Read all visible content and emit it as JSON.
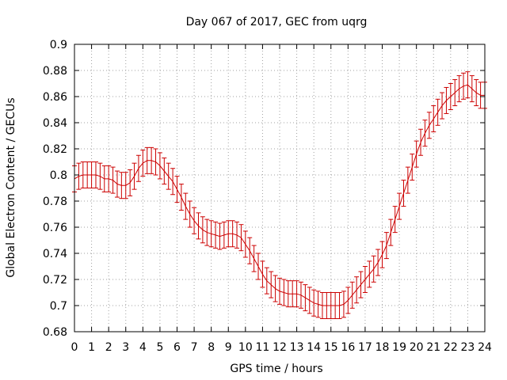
{
  "chart_data": {
    "type": "line",
    "title": "Day 067 of 2017, GEC from uqrg",
    "xlabel": "GPS time / hours",
    "ylabel": "Global Electron Content / GECUs",
    "xlim": [
      0,
      24
    ],
    "ylim": [
      0.68,
      0.9
    ],
    "xticks": [
      "0",
      "1",
      "2",
      "3",
      "4",
      "5",
      "6",
      "7",
      "8",
      "9",
      "10",
      "11",
      "12",
      "13",
      "14",
      "15",
      "16",
      "17",
      "18",
      "19",
      "20",
      "21",
      "22",
      "23",
      "24"
    ],
    "yticks": [
      "0.68",
      "0.7",
      "0.72",
      "0.74",
      "0.76",
      "0.78",
      "0.8",
      "0.82",
      "0.84",
      "0.86",
      "0.88",
      "0.9"
    ],
    "grid": true,
    "series_color": "#cc0000",
    "series": [
      {
        "name": "GEC",
        "x": [
          0,
          0.25,
          0.5,
          0.75,
          1,
          1.25,
          1.5,
          1.75,
          2,
          2.25,
          2.5,
          2.75,
          3,
          3.25,
          3.5,
          3.75,
          4,
          4.25,
          4.5,
          4.75,
          5,
          5.25,
          5.5,
          5.75,
          6,
          6.25,
          6.5,
          6.75,
          7,
          7.25,
          7.5,
          7.75,
          8,
          8.25,
          8.5,
          8.75,
          9,
          9.25,
          9.5,
          9.75,
          10,
          10.25,
          10.5,
          10.75,
          11,
          11.25,
          11.5,
          11.75,
          12,
          12.25,
          12.5,
          12.75,
          13,
          13.25,
          13.5,
          13.75,
          14,
          14.25,
          14.5,
          14.75,
          15,
          15.25,
          15.5,
          15.75,
          16,
          16.25,
          16.5,
          16.75,
          17,
          17.25,
          17.5,
          17.75,
          18,
          18.25,
          18.5,
          18.75,
          19,
          19.25,
          19.5,
          19.75,
          20,
          20.25,
          20.5,
          20.75,
          21,
          21.25,
          21.5,
          21.75,
          22,
          22.25,
          22.5,
          22.75,
          23,
          23.25,
          23.5,
          23.75,
          24
        ],
        "y": [
          0.797,
          0.799,
          0.8,
          0.8,
          0.8,
          0.8,
          0.799,
          0.797,
          0.797,
          0.796,
          0.793,
          0.792,
          0.792,
          0.794,
          0.799,
          0.805,
          0.809,
          0.811,
          0.811,
          0.81,
          0.807,
          0.803,
          0.799,
          0.795,
          0.789,
          0.783,
          0.776,
          0.77,
          0.765,
          0.761,
          0.758,
          0.756,
          0.755,
          0.754,
          0.753,
          0.754,
          0.755,
          0.755,
          0.754,
          0.752,
          0.747,
          0.742,
          0.736,
          0.73,
          0.724,
          0.719,
          0.716,
          0.713,
          0.711,
          0.71,
          0.709,
          0.709,
          0.709,
          0.708,
          0.706,
          0.704,
          0.702,
          0.701,
          0.7,
          0.7,
          0.7,
          0.7,
          0.7,
          0.701,
          0.704,
          0.708,
          0.712,
          0.716,
          0.72,
          0.724,
          0.728,
          0.733,
          0.739,
          0.746,
          0.756,
          0.766,
          0.776,
          0.786,
          0.796,
          0.806,
          0.816,
          0.825,
          0.832,
          0.838,
          0.843,
          0.848,
          0.853,
          0.857,
          0.86,
          0.863,
          0.866,
          0.868,
          0.869,
          0.866,
          0.863,
          0.861,
          0.861
        ],
        "error": 0.01
      }
    ]
  }
}
